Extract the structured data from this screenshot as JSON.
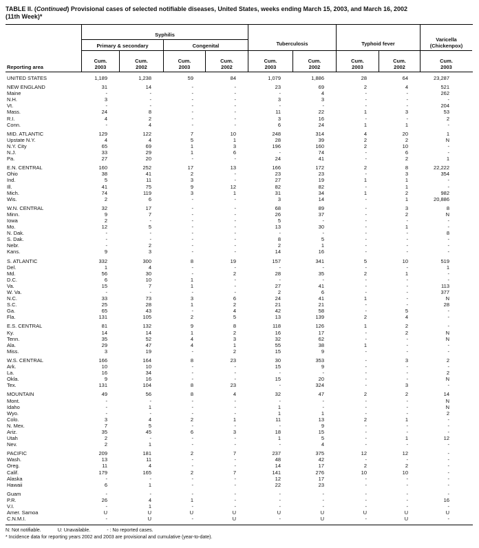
{
  "title": {
    "t1": "TABLE II. (",
    "t2": "Continued",
    "t3": ") Provisional cases of selected notifiable diseases, United States, weeks ending March 15, 2003, and March 16, 2002",
    "line2": "(11th Week)*"
  },
  "table": {
    "reporting_area_label": "Reporting area",
    "header": {
      "syphilis": "Syphilis",
      "primary_secondary": "Primary & secondary",
      "congenital": "Congenital",
      "tuberculosis": "Tuberculosis",
      "typhoid": "Typhoid fever",
      "varicella_line1": "Varicella",
      "varicella_line2": "(Chickenpox)"
    },
    "cum_labels": [
      {
        "l1": "Cum.",
        "l2": "2003"
      },
      {
        "l1": "Cum.",
        "l2": "2002"
      },
      {
        "l1": "Cum.",
        "l2": "2003"
      },
      {
        "l1": "Cum.",
        "l2": "2002"
      },
      {
        "l1": "Cum.",
        "l2": "2003"
      },
      {
        "l1": "Cum.",
        "l2": "2002"
      },
      {
        "l1": "Cum.",
        "l2": "2003"
      },
      {
        "l1": "Cum.",
        "l2": "2002"
      },
      {
        "l1": "Cum.",
        "l2": "2003"
      }
    ],
    "groups": [
      {
        "rows": [
          {
            "a": "UNITED STATES",
            "v": [
              "1,189",
              "1,238",
              "59",
              "84",
              "1,079",
              "1,886",
              "28",
              "64",
              "23,287"
            ]
          }
        ]
      },
      {
        "rows": [
          {
            "a": "NEW ENGLAND",
            "v": [
              "31",
              "14",
              "-",
              "-",
              "23",
              "69",
              "2",
              "4",
              "521"
            ]
          },
          {
            "a": "Maine",
            "v": [
              "-",
              "-",
              "-",
              "-",
              "-",
              "4",
              "-",
              "-",
              "262"
            ]
          },
          {
            "a": "N.H.",
            "v": [
              "3",
              "-",
              "-",
              "-",
              "3",
              "3",
              "-",
              "-",
              "-"
            ]
          },
          {
            "a": "Vt.",
            "v": [
              "-",
              "-",
              "-",
              "-",
              "-",
              "-",
              "-",
              "-",
              "204"
            ]
          },
          {
            "a": "Mass.",
            "v": [
              "24",
              "8",
              "-",
              "-",
              "11",
              "22",
              "1",
              "3",
              "53"
            ]
          },
          {
            "a": "R.I.",
            "v": [
              "4",
              "2",
              "-",
              "-",
              "3",
              "16",
              "-",
              "-",
              "2"
            ]
          },
          {
            "a": "Conn.",
            "v": [
              "-",
              "4",
              "-",
              "-",
              "6",
              "24",
              "1",
              "1",
              "-"
            ]
          }
        ]
      },
      {
        "rows": [
          {
            "a": "MID. ATLANTIC",
            "v": [
              "129",
              "122",
              "7",
              "10",
              "248",
              "314",
              "4",
              "20",
              "1"
            ]
          },
          {
            "a": "Upstate N.Y.",
            "v": [
              "4",
              "4",
              "5",
              "1",
              "28",
              "39",
              "2",
              "2",
              "N"
            ]
          },
          {
            "a": "N.Y. City",
            "v": [
              "65",
              "69",
              "1",
              "3",
              "196",
              "160",
              "2",
              "10",
              "-"
            ]
          },
          {
            "a": "N.J.",
            "v": [
              "33",
              "29",
              "1",
              "6",
              "-",
              "74",
              "-",
              "6",
              "-"
            ]
          },
          {
            "a": "Pa.",
            "v": [
              "27",
              "20",
              "-",
              "-",
              "24",
              "41",
              "-",
              "2",
              "1"
            ]
          }
        ]
      },
      {
        "rows": [
          {
            "a": "E.N. CENTRAL",
            "v": [
              "160",
              "252",
              "17",
              "13",
              "166",
              "172",
              "2",
              "8",
              "22,222"
            ]
          },
          {
            "a": "Ohio",
            "v": [
              "38",
              "41",
              "2",
              "-",
              "23",
              "23",
              "-",
              "3",
              "354"
            ]
          },
          {
            "a": "Ind.",
            "v": [
              "5",
              "11",
              "3",
              "-",
              "27",
              "19",
              "1",
              "1",
              "-"
            ]
          },
          {
            "a": "Ill.",
            "v": [
              "41",
              "75",
              "9",
              "12",
              "82",
              "82",
              "-",
              "1",
              "-"
            ]
          },
          {
            "a": "Mich.",
            "v": [
              "74",
              "119",
              "3",
              "1",
              "31",
              "34",
              "1",
              "2",
              "982"
            ]
          },
          {
            "a": "Wis.",
            "v": [
              "2",
              "6",
              "-",
              "-",
              "3",
              "14",
              "-",
              "1",
              "20,886"
            ]
          }
        ]
      },
      {
        "rows": [
          {
            "a": "W.N. CENTRAL",
            "v": [
              "32",
              "17",
              "-",
              "-",
              "68",
              "89",
              "-",
              "3",
              "8"
            ]
          },
          {
            "a": "Minn.",
            "v": [
              "9",
              "7",
              "-",
              "-",
              "26",
              "37",
              "-",
              "2",
              "N"
            ]
          },
          {
            "a": "Iowa",
            "v": [
              "2",
              "-",
              "-",
              "-",
              "5",
              "-",
              "-",
              "-",
              "-"
            ]
          },
          {
            "a": "Mo.",
            "v": [
              "12",
              "5",
              "-",
              "-",
              "13",
              "30",
              "-",
              "1",
              "-"
            ]
          },
          {
            "a": "N. Dak.",
            "v": [
              "-",
              "-",
              "-",
              "-",
              "-",
              "-",
              "-",
              "-",
              "8"
            ]
          },
          {
            "a": "S. Dak.",
            "v": [
              "-",
              "-",
              "-",
              "-",
              "8",
              "5",
              "-",
              "-",
              "-"
            ]
          },
          {
            "a": "Nebr.",
            "v": [
              "-",
              "2",
              "-",
              "-",
              "2",
              "1",
              "-",
              "-",
              "-"
            ]
          },
          {
            "a": "Kans.",
            "v": [
              "9",
              "3",
              "-",
              "-",
              "14",
              "16",
              "-",
              "-",
              "-"
            ]
          }
        ]
      },
      {
        "rows": [
          {
            "a": "S. ATLANTIC",
            "v": [
              "332",
              "300",
              "8",
              "19",
              "157",
              "341",
              "5",
              "10",
              "519"
            ]
          },
          {
            "a": "Del.",
            "v": [
              "1",
              "4",
              "-",
              "-",
              "-",
              "-",
              "-",
              "-",
              "1"
            ]
          },
          {
            "a": "Md.",
            "v": [
              "56",
              "30",
              "-",
              "2",
              "28",
              "35",
              "2",
              "1",
              "-"
            ]
          },
          {
            "a": "D.C.",
            "v": [
              "6",
              "10",
              "1",
              "-",
              "-",
              "-",
              "-",
              "-",
              "-"
            ]
          },
          {
            "a": "Va.",
            "v": [
              "15",
              "7",
              "1",
              "-",
              "27",
              "41",
              "-",
              "-",
              "113"
            ]
          },
          {
            "a": "W. Va.",
            "v": [
              "-",
              "-",
              "-",
              "-",
              "2",
              "6",
              "-",
              "-",
              "377"
            ]
          },
          {
            "a": "N.C.",
            "v": [
              "33",
              "73",
              "3",
              "6",
              "24",
              "41",
              "1",
              "-",
              "N"
            ]
          },
          {
            "a": "S.C.",
            "v": [
              "25",
              "28",
              "1",
              "2",
              "21",
              "21",
              "-",
              "-",
              "28"
            ]
          },
          {
            "a": "Ga.",
            "v": [
              "65",
              "43",
              "-",
              "4",
              "42",
              "58",
              "-",
              "5",
              "-"
            ]
          },
          {
            "a": "Fla.",
            "v": [
              "131",
              "105",
              "2",
              "5",
              "13",
              "139",
              "2",
              "4",
              "-"
            ]
          }
        ]
      },
      {
        "rows": [
          {
            "a": "E.S. CENTRAL",
            "v": [
              "81",
              "132",
              "9",
              "8",
              "118",
              "126",
              "1",
              "2",
              "-"
            ]
          },
          {
            "a": "Ky.",
            "v": [
              "14",
              "14",
              "1",
              "2",
              "16",
              "17",
              "-",
              "2",
              "N"
            ]
          },
          {
            "a": "Tenn.",
            "v": [
              "35",
              "52",
              "4",
              "3",
              "32",
              "62",
              "-",
              "-",
              "N"
            ]
          },
          {
            "a": "Ala.",
            "v": [
              "29",
              "47",
              "4",
              "1",
              "55",
              "38",
              "1",
              "-",
              "-"
            ]
          },
          {
            "a": "Miss.",
            "v": [
              "3",
              "19",
              "-",
              "2",
              "15",
              "9",
              "-",
              "-",
              "-"
            ]
          }
        ]
      },
      {
        "rows": [
          {
            "a": "W.S. CENTRAL",
            "v": [
              "166",
              "164",
              "8",
              "23",
              "30",
              "353",
              "-",
              "3",
              "2"
            ]
          },
          {
            "a": "Ark.",
            "v": [
              "10",
              "10",
              "-",
              "-",
              "15",
              "9",
              "-",
              "-",
              "-"
            ]
          },
          {
            "a": "La.",
            "v": [
              "16",
              "34",
              "-",
              "-",
              "-",
              "-",
              "-",
              "-",
              "2"
            ]
          },
          {
            "a": "Okla.",
            "v": [
              "9",
              "16",
              "-",
              "-",
              "15",
              "20",
              "-",
              "-",
              "N"
            ]
          },
          {
            "a": "Tex.",
            "v": [
              "131",
              "104",
              "8",
              "23",
              "-",
              "324",
              "-",
              "3",
              "-"
            ]
          }
        ]
      },
      {
        "rows": [
          {
            "a": "MOUNTAIN",
            "v": [
              "49",
              "56",
              "8",
              "4",
              "32",
              "47",
              "2",
              "2",
              "14"
            ]
          },
          {
            "a": "Mont.",
            "v": [
              "-",
              "-",
              "-",
              "-",
              "-",
              "-",
              "-",
              "-",
              "N"
            ]
          },
          {
            "a": "Idaho",
            "v": [
              "-",
              "1",
              "-",
              "-",
              "1",
              "-",
              "-",
              "-",
              "N"
            ]
          },
          {
            "a": "Wyo.",
            "v": [
              "-",
              "-",
              "-",
              "-",
              "1",
              "1",
              "-",
              "-",
              "2"
            ]
          },
          {
            "a": "Colo.",
            "v": [
              "3",
              "4",
              "2",
              "1",
              "11",
              "13",
              "2",
              "1",
              "-"
            ]
          },
          {
            "a": "N. Mex.",
            "v": [
              "7",
              "5",
              "-",
              "-",
              "-",
              "9",
              "-",
              "-",
              "-"
            ]
          },
          {
            "a": "Ariz.",
            "v": [
              "35",
              "45",
              "6",
              "3",
              "18",
              "15",
              "-",
              "-",
              "-"
            ]
          },
          {
            "a": "Utah",
            "v": [
              "2",
              "-",
              "-",
              "-",
              "1",
              "5",
              "-",
              "1",
              "12"
            ]
          },
          {
            "a": "Nev.",
            "v": [
              "2",
              "1",
              "-",
              "-",
              "-",
              "4",
              "-",
              "-",
              "-"
            ]
          }
        ]
      },
      {
        "rows": [
          {
            "a": "PACIFIC",
            "v": [
              "209",
              "181",
              "2",
              "7",
              "237",
              "375",
              "12",
              "12",
              "-"
            ]
          },
          {
            "a": "Wash.",
            "v": [
              "13",
              "11",
              "-",
              "-",
              "48",
              "42",
              "-",
              "-",
              "-"
            ]
          },
          {
            "a": "Oreg.",
            "v": [
              "11",
              "4",
              "-",
              "-",
              "14",
              "17",
              "2",
              "2",
              "-"
            ]
          },
          {
            "a": "Calif.",
            "v": [
              "179",
              "165",
              "2",
              "7",
              "141",
              "276",
              "10",
              "10",
              "-"
            ]
          },
          {
            "a": "Alaska",
            "v": [
              "-",
              "-",
              "-",
              "-",
              "12",
              "17",
              "-",
              "-",
              "-"
            ]
          },
          {
            "a": "Hawaii",
            "v": [
              "6",
              "1",
              "-",
              "-",
              "22",
              "23",
              "-",
              "-",
              "-"
            ]
          }
        ]
      },
      {
        "rows": [
          {
            "a": "Guam",
            "v": [
              "-",
              "-",
              "-",
              "-",
              "-",
              "-",
              "-",
              "-",
              "-"
            ]
          },
          {
            "a": "P.R.",
            "v": [
              "26",
              "4",
              "1",
              "-",
              "-",
              "-",
              "-",
              "-",
              "16"
            ]
          },
          {
            "a": "V.I.",
            "v": [
              "-",
              "1",
              "-",
              "-",
              "-",
              "-",
              "-",
              "-",
              "-"
            ]
          },
          {
            "a": "Amer. Samoa",
            "v": [
              "U",
              "U",
              "U",
              "U",
              "U",
              "U",
              "U",
              "U",
              "U"
            ]
          },
          {
            "a": "C.N.M.I.",
            "v": [
              "-",
              "U",
              "-",
              "U",
              "-",
              "U",
              "-",
              "U",
              "-"
            ]
          }
        ]
      }
    ]
  },
  "footnotes": {
    "n": "N: Not notifiable.",
    "u": "U: Unavailable.",
    "dash": "- : No reported cases.",
    "star": "* Incidence data for reporting years 2002 and 2003 are provisional and cumulative (year-to-date)."
  }
}
